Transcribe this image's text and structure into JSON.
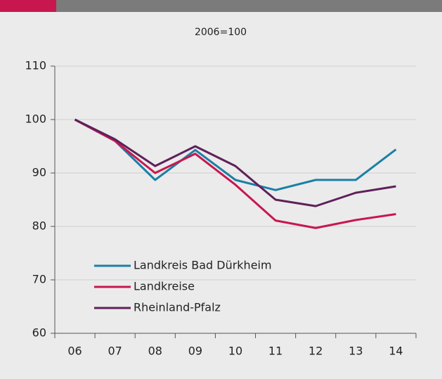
{
  "chart_data": {
    "type": "line",
    "subtitle": "2006=100",
    "categories": [
      "06",
      "07",
      "08",
      "09",
      "10",
      "11",
      "12",
      "13",
      "14"
    ],
    "series": [
      {
        "name": "Landkreis Bad Dürkheim",
        "color": "#1b7fa6",
        "values": [
          100,
          96,
          88.7,
          94.3,
          88.7,
          86.8,
          88.7,
          88.7,
          94.4
        ]
      },
      {
        "name": "Landkreise",
        "color": "#c8174f",
        "values": [
          100,
          96,
          90,
          93.6,
          87.8,
          81.1,
          79.7,
          81.2,
          82.3
        ]
      },
      {
        "name": "Rheinland-Pfalz",
        "color": "#5e2159",
        "values": [
          100,
          96.3,
          91.3,
          95,
          91.3,
          85,
          83.8,
          86.3,
          87.5
        ]
      }
    ],
    "ylim": [
      60,
      110
    ],
    "yticks": [
      60,
      70,
      80,
      90,
      100,
      110
    ],
    "grid": true
  }
}
